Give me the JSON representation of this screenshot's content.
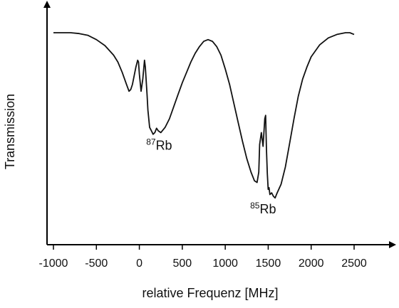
{
  "chart_data": {
    "type": "line",
    "title": "",
    "xlabel": "relative Frequenz [MHz]",
    "ylabel": "Transmission",
    "xlim": [
      -1000,
      2500
    ],
    "x_ticks": [
      -1000,
      -500,
      0,
      500,
      1000,
      1500,
      2000,
      2500
    ],
    "x_tick_labels": [
      "-1000",
      "-500",
      "0",
      "500",
      "1000",
      "1500",
      "2000",
      "2500"
    ],
    "y_ticks": [],
    "grid": false,
    "legend": "none",
    "colors": {
      "line": "#111111",
      "axis": "#000000"
    },
    "series": [
      {
        "x": [
          -1000,
          -900,
          -800,
          -700,
          -600,
          -500,
          -400,
          -300,
          -250,
          -200,
          -150,
          -120,
          -100,
          -80,
          -60,
          -40,
          -20,
          -10,
          0,
          20,
          40,
          60,
          70,
          80,
          90,
          100,
          120,
          140,
          160,
          180,
          200,
          220,
          250,
          300,
          350,
          400,
          450,
          500,
          550,
          600,
          650,
          700,
          750,
          800,
          850,
          900,
          950,
          1000,
          1050,
          1100,
          1150,
          1200,
          1250,
          1300,
          1340,
          1370,
          1390,
          1400,
          1420,
          1440,
          1460,
          1470,
          1480,
          1490,
          1500,
          1510,
          1520,
          1540,
          1560,
          1580,
          1600,
          1650,
          1700,
          1750,
          1800,
          1850,
          1900,
          1950,
          2000,
          2100,
          2200,
          2300,
          2400,
          2450,
          2500
        ],
        "y": [
          1.0,
          1.0,
          1.0,
          0.995,
          0.985,
          0.96,
          0.925,
          0.87,
          0.83,
          0.77,
          0.7,
          0.66,
          0.67,
          0.7,
          0.75,
          0.8,
          0.84,
          0.83,
          0.76,
          0.66,
          0.73,
          0.84,
          0.8,
          0.72,
          0.64,
          0.55,
          0.45,
          0.43,
          0.41,
          0.42,
          0.445,
          0.43,
          0.42,
          0.45,
          0.5,
          0.57,
          0.64,
          0.71,
          0.77,
          0.83,
          0.88,
          0.92,
          0.95,
          0.96,
          0.95,
          0.92,
          0.87,
          0.79,
          0.7,
          0.59,
          0.48,
          0.37,
          0.27,
          0.19,
          0.14,
          0.13,
          0.19,
          0.35,
          0.42,
          0.34,
          0.5,
          0.52,
          0.32,
          0.18,
          0.09,
          0.1,
          0.06,
          0.07,
          0.05,
          0.04,
          0.065,
          0.12,
          0.22,
          0.36,
          0.5,
          0.63,
          0.73,
          0.8,
          0.86,
          0.93,
          0.97,
          0.99,
          1.0,
          1.0,
          0.99
        ]
      }
    ],
    "annotations": [
      {
        "sup": "87",
        "text": "Rb",
        "x": 80,
        "y": 0.32
      },
      {
        "sup": "85",
        "text": "Rb",
        "x": 1290,
        "y": -0.05
      }
    ]
  }
}
